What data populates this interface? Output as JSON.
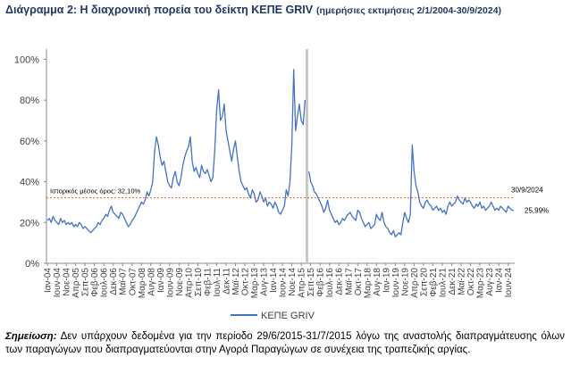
{
  "chart_data": {
    "type": "line",
    "title": "Διάγραμμα 2: Η διαχρονική πορεία του δείκτη ΚΕΠΕ GRIV",
    "subtitle": "(ημερήσιες εκτιμήσεις 2/1/2004-30/9/2024)",
    "categories": [
      "Ιαν-04",
      null,
      null,
      null,
      null,
      "Ιουν-04",
      null,
      null,
      null,
      null,
      "Νοε-04",
      null,
      null,
      null,
      null,
      "Απρ-05",
      null,
      null,
      null,
      null,
      "Σεπ-05",
      null,
      null,
      null,
      null,
      "Φεβ-06",
      null,
      null,
      null,
      null,
      "Ιουλ-06",
      null,
      null,
      null,
      null,
      "Δεκ-06",
      null,
      null,
      null,
      null,
      "Μαϊ-07",
      null,
      null,
      null,
      null,
      "Οκτ-07",
      null,
      null,
      null,
      null,
      "Μαρ-08",
      null,
      null,
      null,
      null,
      "Αυγ-08",
      null,
      null,
      null,
      null,
      "Ιαν-09",
      null,
      null,
      null,
      null,
      "Ιουν-09",
      null,
      null,
      null,
      null,
      "Νοε-09",
      null,
      null,
      null,
      null,
      "Απρ-10",
      null,
      null,
      null,
      null,
      "Σεπ-10",
      null,
      null,
      null,
      null,
      "Φεβ-11",
      null,
      null,
      null,
      null,
      "Ιουλ-11",
      null,
      null,
      null,
      null,
      "Δεκ-11",
      null,
      null,
      null,
      null,
      "Μαϊ-12",
      null,
      null,
      null,
      null,
      "Οκτ-12",
      null,
      null,
      null,
      null,
      "Μαρ-13",
      null,
      null,
      null,
      null,
      "Αυγ-13",
      null,
      null,
      null,
      null,
      "Ιαν-14",
      null,
      null,
      null,
      null,
      "Ιουν-14",
      null,
      null,
      null,
      null,
      "Νοε-14",
      null,
      null,
      null,
      null,
      "Απρ-15",
      null,
      null,
      null,
      null,
      "Σεπ-15",
      null,
      null,
      null,
      null,
      "Φεβ-16",
      null,
      null,
      null,
      null,
      "Ιουλ-16",
      null,
      null,
      null,
      null,
      "Δεκ-16",
      null,
      null,
      null,
      null,
      "Μαϊ-17",
      null,
      null,
      null,
      null,
      "Οκτ-17",
      null,
      null,
      null,
      null,
      "Μαρ-18",
      null,
      null,
      null,
      null,
      "Αυγ-18",
      null,
      null,
      null,
      null,
      "Ιαν-19",
      null,
      null,
      null,
      null,
      "Ιουν-19",
      null,
      null,
      null,
      null,
      "Νοε-19",
      null,
      null,
      null,
      null,
      "Απρ-20",
      null,
      null,
      null,
      null,
      "Σεπ-20",
      null,
      null,
      null,
      null,
      "Φεβ-21",
      null,
      null,
      null,
      null,
      "Ιουλ-21",
      null,
      null,
      null,
      null,
      "Δεκ-21",
      null,
      null,
      null,
      null,
      "Μαϊ-22",
      null,
      null,
      null,
      null,
      "Οκτ-22",
      null,
      null,
      null,
      null,
      "Μαρ-23",
      null,
      null,
      null,
      null,
      "Αυγ-23",
      null,
      null,
      null,
      null,
      "Ιαν-24",
      null,
      null,
      null,
      null,
      "Ιουν-24",
      null,
      null,
      null
    ],
    "series": [
      {
        "name": "ΚΕΠΕ GRIV",
        "color": "#4472c4",
        "values": [
          21,
          22,
          20,
          23,
          21,
          20,
          19,
          22,
          20,
          21,
          19,
          20,
          19,
          20,
          18,
          19,
          18,
          20,
          19,
          17,
          18,
          17,
          16,
          15,
          16,
          17,
          18,
          20,
          19,
          21,
          22,
          24,
          23,
          26,
          28,
          25,
          24,
          23,
          22,
          25,
          24,
          22,
          20,
          18,
          19,
          21,
          22,
          24,
          26,
          28,
          30,
          29,
          31,
          35,
          33,
          36,
          40,
          55,
          62,
          58,
          52,
          48,
          50,
          45,
          40,
          38,
          37,
          42,
          45,
          40,
          38,
          42,
          48,
          52,
          55,
          57,
          62,
          50,
          45,
          47,
          44,
          42,
          48,
          45,
          44,
          46,
          43,
          40,
          42,
          55,
          75,
          85,
          70,
          72,
          78,
          65,
          60,
          55,
          50,
          56,
          60,
          52,
          45,
          40,
          38,
          36,
          37,
          34,
          32,
          36,
          34,
          30,
          31,
          35,
          33,
          30,
          32,
          28,
          30,
          29,
          27,
          30,
          28,
          25,
          24,
          26,
          28,
          36,
          33,
          40,
          58,
          95,
          65,
          72,
          78,
          70,
          68,
          80,
          null,
          45,
          40,
          38,
          35,
          34,
          32,
          30,
          28,
          25,
          27,
          31,
          26,
          24,
          22,
          20,
          21,
          19,
          20,
          22,
          21,
          23,
          24,
          25,
          23,
          22,
          21,
          26,
          25,
          22,
          20,
          18,
          19,
          20,
          17,
          18,
          19,
          24,
          22,
          21,
          25,
          20,
          18,
          17,
          15,
          14,
          16,
          13,
          14,
          15,
          14,
          20,
          25,
          22,
          20,
          24,
          58,
          45,
          38,
          35,
          30,
          28,
          27,
          30,
          31,
          29,
          28,
          26,
          27,
          28,
          26,
          27,
          25,
          26,
          24,
          28,
          30,
          28,
          29,
          30,
          33,
          31,
          30,
          29,
          32,
          30,
          31,
          30,
          28,
          27,
          29,
          28,
          30,
          27,
          28,
          26,
          27,
          28,
          30,
          28,
          26,
          27,
          26,
          28,
          27,
          26,
          25,
          28,
          27,
          26,
          25.99
        ]
      }
    ],
    "ylim": [
      0,
      105
    ],
    "yticks": [
      {
        "value": 0,
        "label": "0%"
      },
      {
        "value": 20,
        "label": "20%"
      },
      {
        "value": 40,
        "label": "40%"
      },
      {
        "value": 60,
        "label": "60%"
      },
      {
        "value": 80,
        "label": "80%"
      },
      {
        "value": 100,
        "label": "100%"
      }
    ],
    "reference_line": {
      "value": 32.1,
      "label": "Ιστορικός μέσος όρος: 32,10%",
      "color": "#e0602a"
    },
    "annotations": [
      "30/9/2024",
      "25,99%"
    ],
    "legend": "bottom",
    "note": {
      "label": "Σημείωση:",
      "text": "Δεν υπάρχουν δεδομένα για την περίοδο 29/6/2015-31/7/2015 λόγω της αναστολής διαπραγμάτευσης όλων των παραγώγων που διαπραγματεύονται στην Αγορά Παραγώγων σε συνέχεια της τραπεζικής αργίας."
    }
  }
}
